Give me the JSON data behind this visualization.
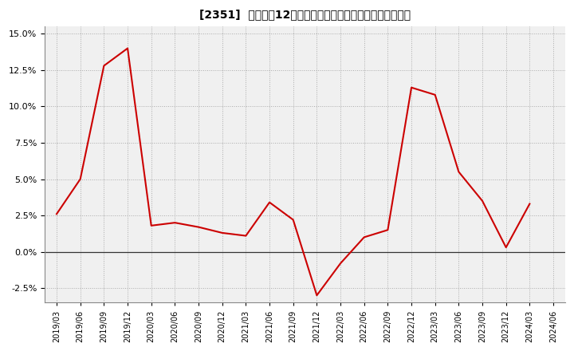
{
  "title": "[2351]  売上高の12か月移動合計の対前年同期増減率の推移",
  "line_color": "#cc0000",
  "background_color": "#ffffff",
  "plot_bg_color": "#f0f0f0",
  "grid_color": "#aaaaaa",
  "ylim": [
    -0.035,
    0.155
  ],
  "yticks": [
    -0.025,
    0.0,
    0.025,
    0.05,
    0.075,
    0.1,
    0.125,
    0.15
  ],
  "dates": [
    "2019/03",
    "2019/06",
    "2019/09",
    "2019/12",
    "2020/03",
    "2020/06",
    "2020/09",
    "2020/12",
    "2021/03",
    "2021/06",
    "2021/09",
    "2021/12",
    "2022/03",
    "2022/06",
    "2022/09",
    "2022/12",
    "2023/03",
    "2023/06",
    "2023/09",
    "2023/12",
    "2024/03",
    "2024/06"
  ],
  "values": [
    0.026,
    0.05,
    0.128,
    0.14,
    0.018,
    0.02,
    0.017,
    0.013,
    0.011,
    0.034,
    0.022,
    -0.03,
    -0.008,
    0.01,
    0.015,
    0.113,
    0.108,
    0.055,
    0.035,
    0.003,
    0.033,
    null
  ]
}
